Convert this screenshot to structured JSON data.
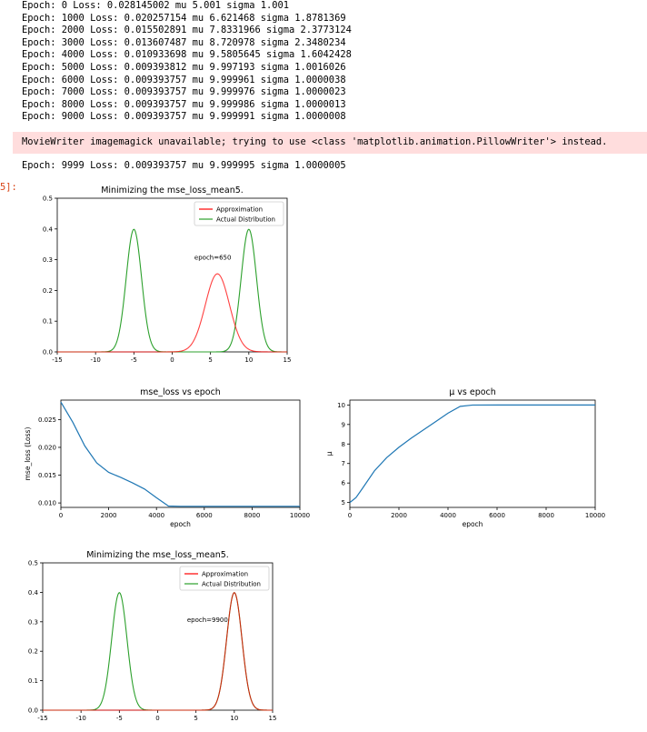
{
  "log": {
    "lines": [
      "Epoch: 0 Loss: 0.028145002 mu 5.001 sigma 1.001",
      "Epoch: 1000 Loss: 0.020257154 mu 6.621468 sigma 1.8781369",
      "Epoch: 2000 Loss: 0.015502891 mu 7.8331966 sigma 2.3773124",
      "Epoch: 3000 Loss: 0.013607487 mu 8.720978 sigma 2.3480234",
      "Epoch: 4000 Loss: 0.010933698 mu 9.5805645 sigma 1.6042428",
      "Epoch: 5000 Loss: 0.009393812 mu 9.997193 sigma 1.0016026",
      "Epoch: 6000 Loss: 0.009393757 mu 9.999961 sigma 1.0000038",
      "Epoch: 7000 Loss: 0.009393757 mu 9.999976 sigma 1.0000023",
      "Epoch: 8000 Loss: 0.009393757 mu 9.999986 sigma 1.0000013",
      "Epoch: 9000 Loss: 0.009393757 mu 9.999991 sigma 1.0000008"
    ],
    "warning": "MovieWriter imagemagick unavailable; trying to use <class 'matplotlib.animation.PillowWriter'> instead.",
    "final_line": "Epoch: 9999 Loss: 0.009393757 mu 9.999995 sigma 1.0000005",
    "out_prompt": "5]:"
  },
  "colors": {
    "approximation": "#ff0000",
    "actual": "#2ca02c",
    "series_line": "#1f77b4",
    "stderr_bg": "#ffdddd",
    "prompt": "#d84315"
  },
  "chart_data": [
    {
      "type": "line",
      "title": "Minimizing the mse_loss_mean5.",
      "annotation": "epoch=650",
      "xlim": [
        -15,
        15
      ],
      "ylim": [
        0,
        0.5
      ],
      "xticks": [
        -15,
        -10,
        -5,
        0,
        5,
        10,
        15
      ],
      "yticks": [
        0.0,
        0.1,
        0.2,
        0.3,
        0.4,
        0.5
      ],
      "legend": "top-right",
      "series": [
        {
          "name": "Approximation",
          "kind": "gaussian",
          "mu": 5.9,
          "sigma": 1.57
        },
        {
          "name": "Actual Distribution",
          "kind": "gaussian_mixture",
          "components": [
            {
              "mu": -5,
              "sigma": 1
            },
            {
              "mu": 10,
              "sigma": 1
            }
          ]
        }
      ]
    },
    {
      "type": "line",
      "title": "mse_loss vs epoch",
      "xlabel": "epoch",
      "ylabel": "mse_loss (Loss)",
      "xlim": [
        0,
        10000
      ],
      "ylim": [
        0.0092,
        0.0285
      ],
      "xticks": [
        0,
        2000,
        4000,
        6000,
        8000,
        10000
      ],
      "yticks": [
        0.01,
        0.015,
        0.02,
        0.025
      ],
      "x": [
        0,
        500,
        1000,
        1500,
        2000,
        2500,
        3000,
        3500,
        4000,
        4500,
        5000,
        6000,
        7000,
        8000,
        9000,
        9999
      ],
      "values": [
        0.028145,
        0.0245,
        0.020257,
        0.0172,
        0.015503,
        0.0146,
        0.013607,
        0.0125,
        0.010934,
        0.00945,
        0.009394,
        0.009394,
        0.009394,
        0.009394,
        0.009394,
        0.009394
      ]
    },
    {
      "type": "line",
      "title": "μ vs epoch",
      "xlabel": "epoch",
      "ylabel": "μ",
      "xlim": [
        0,
        10000
      ],
      "ylim": [
        4.75,
        10.25
      ],
      "xticks": [
        0,
        2000,
        4000,
        6000,
        8000,
        10000
      ],
      "yticks": [
        5,
        6,
        7,
        8,
        9,
        10
      ],
      "x": [
        0,
        250,
        500,
        1000,
        1500,
        2000,
        2500,
        3000,
        3500,
        4000,
        4500,
        5000,
        6000,
        7000,
        8000,
        9000,
        9999
      ],
      "values": [
        5.001,
        5.25,
        5.7,
        6.621,
        7.3,
        7.833,
        8.3,
        8.721,
        9.15,
        9.581,
        9.93,
        9.997,
        10.0,
        10.0,
        10.0,
        10.0,
        10.0
      ]
    },
    {
      "type": "line",
      "title": "Minimizing the mse_loss_mean5.",
      "annotation": "epoch=9900",
      "xlim": [
        -15,
        15
      ],
      "ylim": [
        0,
        0.5
      ],
      "xticks": [
        -15,
        -10,
        -5,
        0,
        5,
        10,
        15
      ],
      "yticks": [
        0.0,
        0.1,
        0.2,
        0.3,
        0.4,
        0.5
      ],
      "legend": "top-right",
      "series": [
        {
          "name": "Approximation",
          "kind": "gaussian",
          "mu": 10,
          "sigma": 1
        },
        {
          "name": "Actual Distribution",
          "kind": "gaussian_mixture",
          "components": [
            {
              "mu": -5,
              "sigma": 1
            },
            {
              "mu": 10,
              "sigma": 1
            }
          ]
        }
      ]
    }
  ]
}
